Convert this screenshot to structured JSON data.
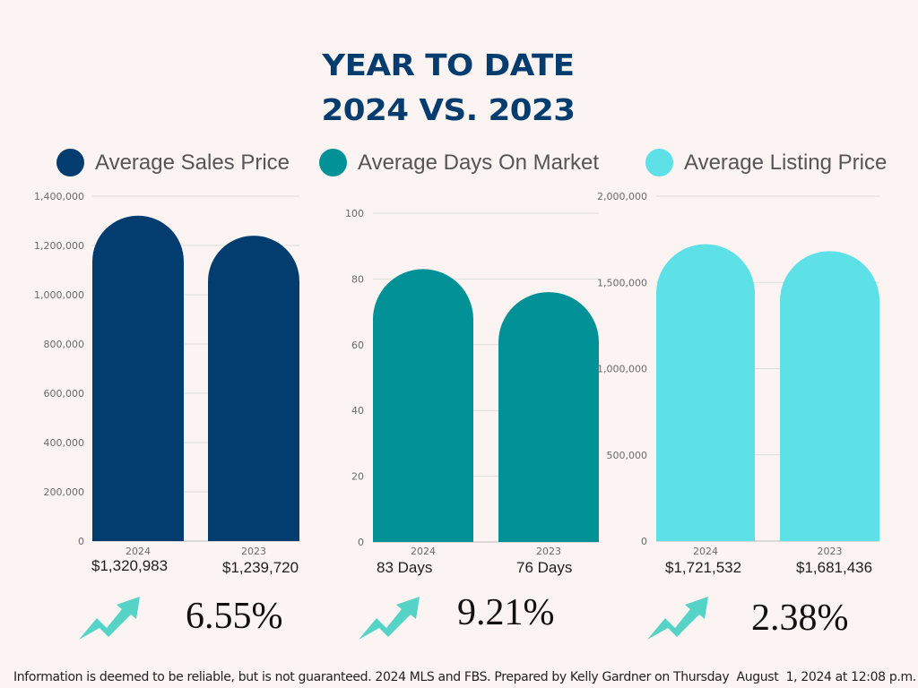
{
  "header": {
    "title_line1": "YEAR TO DATE",
    "title_line2": "2024 VS. 2023"
  },
  "legend": [
    {
      "label": "Average Sales Price",
      "color": "#033d70"
    },
    {
      "label": "Average Days On Market",
      "color": "#029196"
    },
    {
      "label": "Average Listing Price",
      "color": "#5de0e6"
    }
  ],
  "chart_data": [
    {
      "type": "bar",
      "title": "Average Sales Price",
      "categories": [
        "2024",
        "2023"
      ],
      "values": [
        1320983,
        1239720
      ],
      "value_labels": [
        "$1,320,983",
        "$1,239,720"
      ],
      "yticks": [
        0,
        200000,
        400000,
        600000,
        800000,
        1000000,
        1200000,
        1400000
      ],
      "ytick_labels": [
        "0",
        "200,000",
        "400,000",
        "600,000",
        "800,000",
        "1,000,000",
        "1,200,000",
        "1,400,000"
      ],
      "ylim": [
        0,
        1400000
      ],
      "grid": true,
      "color": "#033d70",
      "change": "6.55%"
    },
    {
      "type": "bar",
      "title": "Average Days On Market",
      "categories": [
        "2024",
        "2023"
      ],
      "values": [
        83,
        76
      ],
      "value_labels": [
        "83 Days",
        "76 Days"
      ],
      "yticks": [
        0,
        20,
        40,
        60,
        80,
        100
      ],
      "ytick_labels": [
        "0",
        "20",
        "40",
        "60",
        "80",
        "100"
      ],
      "ylim": [
        0,
        100
      ],
      "grid": true,
      "color": "#029196",
      "change": "9.21%"
    },
    {
      "type": "bar",
      "title": "Average Listing Price",
      "categories": [
        "2024",
        "2023"
      ],
      "values": [
        1721532,
        1681436
      ],
      "value_labels": [
        "$1,721,532",
        "$1,681,436"
      ],
      "yticks": [
        0,
        500000,
        1000000,
        1500000,
        2000000
      ],
      "ytick_labels": [
        "0",
        "500,000",
        "1,000,000",
        "1,500,000",
        "2,000,000"
      ],
      "ylim": [
        0,
        2000000
      ],
      "grid": true,
      "color": "#5de0e6",
      "change": "2.38%"
    }
  ],
  "trend_icon": {
    "name": "trend-up-arrow-icon",
    "color": "#55d3c6"
  },
  "footer": {
    "text": "Information is deemed to be reliable, but is not guaranteed. 2024 MLS and FBS. Prepared by Kelly Gardner on Thursday  August  1, 2024 at 12:08 p.m."
  }
}
